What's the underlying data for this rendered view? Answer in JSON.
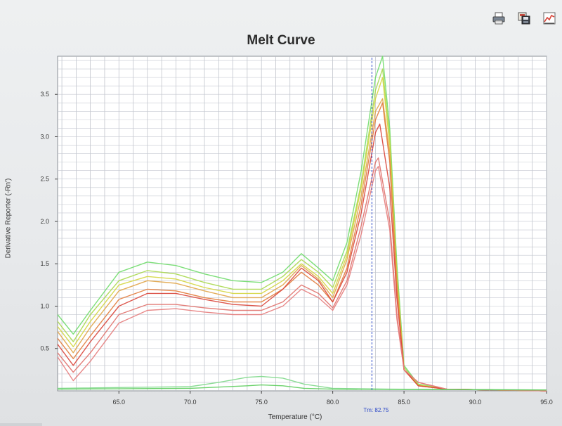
{
  "window": {
    "toolbar": {
      "icons": [
        "print-icon",
        "save-image-icon",
        "chart-options-icon"
      ]
    }
  },
  "chart_data": {
    "type": "line",
    "title": "Melt Curve",
    "xlabel": "Temperature (°C)",
    "ylabel": "Derivative Reporter (-Rn')",
    "xlim": [
      60.7,
      95.0
    ],
    "ylim": [
      0.0,
      3.95
    ],
    "xticks": [
      65.0,
      70.0,
      75.0,
      80.0,
      85.0,
      90.0,
      95.0
    ],
    "xtick_labels": [
      "65.0",
      "70.0",
      "75.0",
      "80.0",
      "85.0",
      "90.0",
      "95.0"
    ],
    "yticks": [
      0.5,
      1.0,
      1.5,
      2.0,
      2.5,
      3.0,
      3.5
    ],
    "ytick_labels": [
      "0.5",
      "1.0",
      "1.5",
      "2.0",
      "2.5",
      "3.0",
      "3.5"
    ],
    "grid": true,
    "tm_marker": {
      "x": 82.75,
      "label": "Tm: 82.75"
    },
    "series": [
      {
        "color": "#6fdc6a",
        "points": [
          [
            60.7,
            0.9
          ],
          [
            61.8,
            0.67
          ],
          [
            63.0,
            0.95
          ],
          [
            65.0,
            1.4
          ],
          [
            67.0,
            1.52
          ],
          [
            69.0,
            1.48
          ],
          [
            71.0,
            1.38
          ],
          [
            73.0,
            1.3
          ],
          [
            75.0,
            1.28
          ],
          [
            76.5,
            1.4
          ],
          [
            77.8,
            1.62
          ],
          [
            79.0,
            1.45
          ],
          [
            80.0,
            1.3
          ],
          [
            81.0,
            1.75
          ],
          [
            82.0,
            2.6
          ],
          [
            83.0,
            3.7
          ],
          [
            83.5,
            3.95
          ],
          [
            84.0,
            3.1
          ],
          [
            84.5,
            1.5
          ],
          [
            85.0,
            0.3
          ],
          [
            86.0,
            0.08
          ],
          [
            88.0,
            0.02
          ],
          [
            95.0,
            0.0
          ]
        ]
      },
      {
        "color": "#a8d84e",
        "points": [
          [
            60.7,
            0.82
          ],
          [
            61.8,
            0.58
          ],
          [
            63.0,
            0.9
          ],
          [
            65.0,
            1.3
          ],
          [
            67.0,
            1.42
          ],
          [
            69.0,
            1.38
          ],
          [
            71.0,
            1.28
          ],
          [
            73.0,
            1.2
          ],
          [
            75.0,
            1.2
          ],
          [
            76.5,
            1.35
          ],
          [
            77.8,
            1.55
          ],
          [
            79.0,
            1.4
          ],
          [
            80.0,
            1.22
          ],
          [
            81.0,
            1.65
          ],
          [
            82.0,
            2.45
          ],
          [
            83.0,
            3.55
          ],
          [
            83.5,
            3.8
          ],
          [
            84.0,
            3.0
          ],
          [
            84.5,
            1.4
          ],
          [
            85.0,
            0.28
          ],
          [
            86.0,
            0.07
          ],
          [
            88.0,
            0.02
          ],
          [
            95.0,
            0.0
          ]
        ]
      },
      {
        "color": "#d4d640",
        "points": [
          [
            60.7,
            0.76
          ],
          [
            61.8,
            0.52
          ],
          [
            63.0,
            0.82
          ],
          [
            65.0,
            1.25
          ],
          [
            67.0,
            1.35
          ],
          [
            69.0,
            1.32
          ],
          [
            71.0,
            1.22
          ],
          [
            73.0,
            1.15
          ],
          [
            75.0,
            1.15
          ],
          [
            76.5,
            1.3
          ],
          [
            77.8,
            1.5
          ],
          [
            79.0,
            1.35
          ],
          [
            80.0,
            1.15
          ],
          [
            81.0,
            1.6
          ],
          [
            82.0,
            2.4
          ],
          [
            83.0,
            3.45
          ],
          [
            83.5,
            3.7
          ],
          [
            84.0,
            2.9
          ],
          [
            84.5,
            1.35
          ],
          [
            85.0,
            0.25
          ],
          [
            86.0,
            0.07
          ],
          [
            88.0,
            0.02
          ],
          [
            95.0,
            0.0
          ]
        ]
      },
      {
        "color": "#e0a447",
        "points": [
          [
            60.7,
            0.7
          ],
          [
            61.8,
            0.45
          ],
          [
            63.0,
            0.75
          ],
          [
            65.0,
            1.18
          ],
          [
            67.0,
            1.3
          ],
          [
            69.0,
            1.27
          ],
          [
            71.0,
            1.18
          ],
          [
            73.0,
            1.1
          ],
          [
            75.0,
            1.1
          ],
          [
            76.5,
            1.25
          ],
          [
            77.8,
            1.48
          ],
          [
            79.0,
            1.32
          ],
          [
            80.0,
            1.1
          ],
          [
            81.0,
            1.55
          ],
          [
            82.0,
            2.3
          ],
          [
            83.0,
            3.3
          ],
          [
            83.5,
            3.45
          ],
          [
            84.0,
            2.8
          ],
          [
            84.5,
            1.3
          ],
          [
            85.0,
            0.25
          ],
          [
            86.0,
            0.06
          ],
          [
            88.0,
            0.02
          ],
          [
            95.0,
            0.0
          ]
        ]
      },
      {
        "color": "#e27b3b",
        "points": [
          [
            60.7,
            0.62
          ],
          [
            61.8,
            0.38
          ],
          [
            63.0,
            0.65
          ],
          [
            65.0,
            1.08
          ],
          [
            67.0,
            1.2
          ],
          [
            69.0,
            1.18
          ],
          [
            71.0,
            1.1
          ],
          [
            73.0,
            1.05
          ],
          [
            75.0,
            1.05
          ],
          [
            76.5,
            1.2
          ],
          [
            77.8,
            1.4
          ],
          [
            79.0,
            1.25
          ],
          [
            80.0,
            1.05
          ],
          [
            81.0,
            1.45
          ],
          [
            82.0,
            2.2
          ],
          [
            83.0,
            3.2
          ],
          [
            83.5,
            3.4
          ],
          [
            84.0,
            2.7
          ],
          [
            84.5,
            1.2
          ],
          [
            85.0,
            0.25
          ],
          [
            86.0,
            0.06
          ],
          [
            88.0,
            0.02
          ],
          [
            95.0,
            0.0
          ]
        ]
      },
      {
        "color": "#d9453a",
        "points": [
          [
            60.7,
            0.55
          ],
          [
            61.8,
            0.3
          ],
          [
            63.0,
            0.58
          ],
          [
            65.0,
            1.0
          ],
          [
            67.0,
            1.15
          ],
          [
            69.0,
            1.15
          ],
          [
            71.0,
            1.08
          ],
          [
            73.0,
            1.02
          ],
          [
            75.0,
            1.0
          ],
          [
            76.5,
            1.2
          ],
          [
            77.8,
            1.45
          ],
          [
            79.0,
            1.3
          ],
          [
            80.0,
            1.05
          ],
          [
            81.0,
            1.4
          ],
          [
            82.0,
            2.1
          ],
          [
            83.0,
            3.05
          ],
          [
            83.3,
            3.15
          ],
          [
            84.0,
            2.4
          ],
          [
            84.5,
            1.1
          ],
          [
            85.0,
            0.25
          ],
          [
            86.0,
            0.06
          ],
          [
            88.0,
            0.02
          ],
          [
            95.0,
            0.0
          ]
        ]
      },
      {
        "color": "#e0706a",
        "points": [
          [
            60.7,
            0.45
          ],
          [
            61.8,
            0.22
          ],
          [
            63.0,
            0.45
          ],
          [
            65.0,
            0.9
          ],
          [
            67.0,
            1.02
          ],
          [
            69.0,
            1.02
          ],
          [
            71.0,
            0.98
          ],
          [
            73.0,
            0.95
          ],
          [
            75.0,
            0.95
          ],
          [
            76.5,
            1.05
          ],
          [
            77.8,
            1.25
          ],
          [
            79.0,
            1.15
          ],
          [
            80.0,
            0.98
          ],
          [
            81.0,
            1.3
          ],
          [
            82.0,
            1.95
          ],
          [
            83.0,
            2.7
          ],
          [
            83.2,
            2.75
          ],
          [
            84.0,
            2.0
          ],
          [
            84.5,
            0.9
          ],
          [
            85.0,
            0.25
          ],
          [
            86.0,
            0.1
          ],
          [
            88.0,
            0.02
          ],
          [
            95.0,
            0.0
          ]
        ]
      },
      {
        "color": "#e67c7c",
        "points": [
          [
            60.7,
            0.4
          ],
          [
            61.8,
            0.12
          ],
          [
            63.0,
            0.35
          ],
          [
            65.0,
            0.8
          ],
          [
            67.0,
            0.95
          ],
          [
            69.0,
            0.97
          ],
          [
            71.0,
            0.93
          ],
          [
            73.0,
            0.9
          ],
          [
            75.0,
            0.9
          ],
          [
            76.5,
            1.0
          ],
          [
            77.8,
            1.2
          ],
          [
            79.0,
            1.1
          ],
          [
            80.0,
            0.95
          ],
          [
            81.0,
            1.25
          ],
          [
            82.0,
            1.85
          ],
          [
            83.0,
            2.6
          ],
          [
            83.2,
            2.65
          ],
          [
            84.0,
            1.9
          ],
          [
            84.5,
            0.85
          ],
          [
            85.0,
            0.25
          ],
          [
            86.0,
            0.1
          ],
          [
            88.0,
            0.02
          ],
          [
            95.0,
            0.0
          ]
        ]
      },
      {
        "color": "#7ed88a",
        "points": [
          [
            60.7,
            0.03
          ],
          [
            70.0,
            0.05
          ],
          [
            72.0,
            0.1
          ],
          [
            74.0,
            0.16
          ],
          [
            75.0,
            0.17
          ],
          [
            76.5,
            0.15
          ],
          [
            78.0,
            0.08
          ],
          [
            80.0,
            0.03
          ],
          [
            84.0,
            0.02
          ],
          [
            95.0,
            0.01
          ]
        ]
      },
      {
        "color": "#5ccd5c",
        "points": [
          [
            60.7,
            0.02
          ],
          [
            70.0,
            0.03
          ],
          [
            74.0,
            0.06
          ],
          [
            75.0,
            0.07
          ],
          [
            76.5,
            0.06
          ],
          [
            78.0,
            0.03
          ],
          [
            80.0,
            0.02
          ],
          [
            95.0,
            0.01
          ]
        ]
      }
    ]
  }
}
